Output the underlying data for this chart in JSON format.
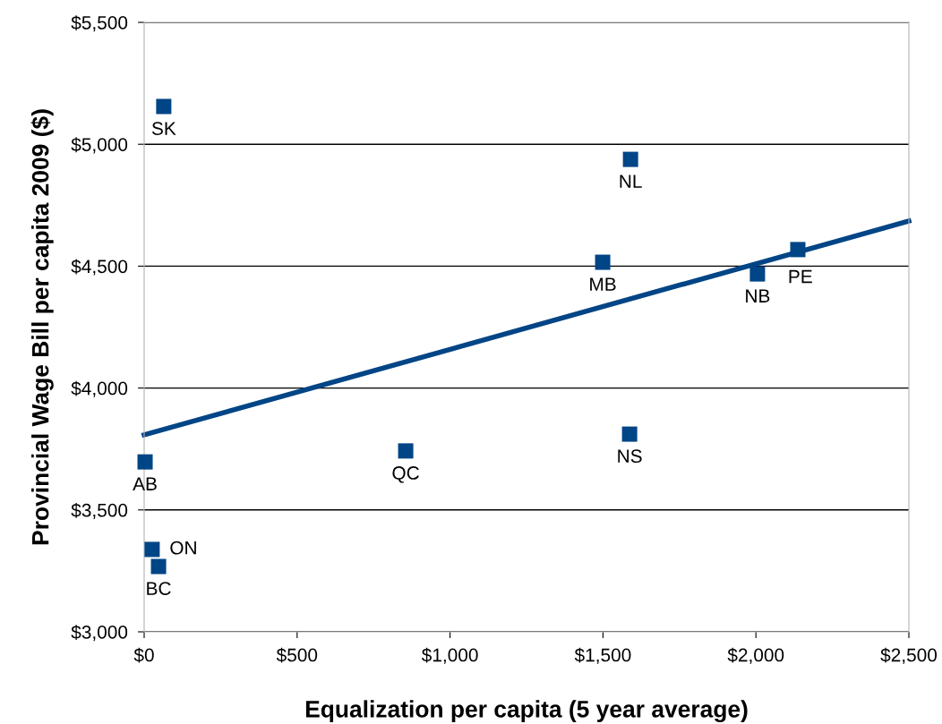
{
  "chart_data": {
    "type": "scatter",
    "xlabel": "Equalization per capita (5 year average)",
    "ylabel": "Provincial Wage Bill per capita 2009 ($)",
    "xlim": [
      0,
      2500
    ],
    "ylim": [
      3000,
      5500
    ],
    "xticks": [
      {
        "value": 0,
        "label": "$0"
      },
      {
        "value": 500,
        "label": "$500"
      },
      {
        "value": 1000,
        "label": "$1,000"
      },
      {
        "value": 1500,
        "label": "$1,500"
      },
      {
        "value": 2000,
        "label": "$2,000"
      },
      {
        "value": 2500,
        "label": "$2,500"
      }
    ],
    "yticks": [
      {
        "value": 3000,
        "label": "$3,000"
      },
      {
        "value": 3500,
        "label": "$3,500"
      },
      {
        "value": 4000,
        "label": "$4,000"
      },
      {
        "value": 4500,
        "label": "$4,500"
      },
      {
        "value": 5000,
        "label": "$5,000"
      },
      {
        "value": 5500,
        "label": "$5,500"
      }
    ],
    "grid": "y",
    "legend": false,
    "marker": "square",
    "series": [
      {
        "color": "#004586",
        "x": [
          64,
          1590,
          1499,
          2005,
          2137,
          855,
          1587,
          3,
          26,
          47
        ],
        "values": [
          5155,
          4938,
          4516,
          4468,
          4568,
          3742,
          3811,
          3697,
          3338,
          3268
        ],
        "value_labels": [
          "SK",
          "NL",
          "MB",
          "NB",
          "PE",
          "QC",
          "NS",
          "AB",
          "ON",
          "BC"
        ]
      },
      {
        "type": "line",
        "color": "#004586",
        "x": [
          0,
          2500
        ],
        "values": [
          3808,
          4685
        ],
        "line_style": "solid",
        "marker": "none"
      }
    ]
  }
}
